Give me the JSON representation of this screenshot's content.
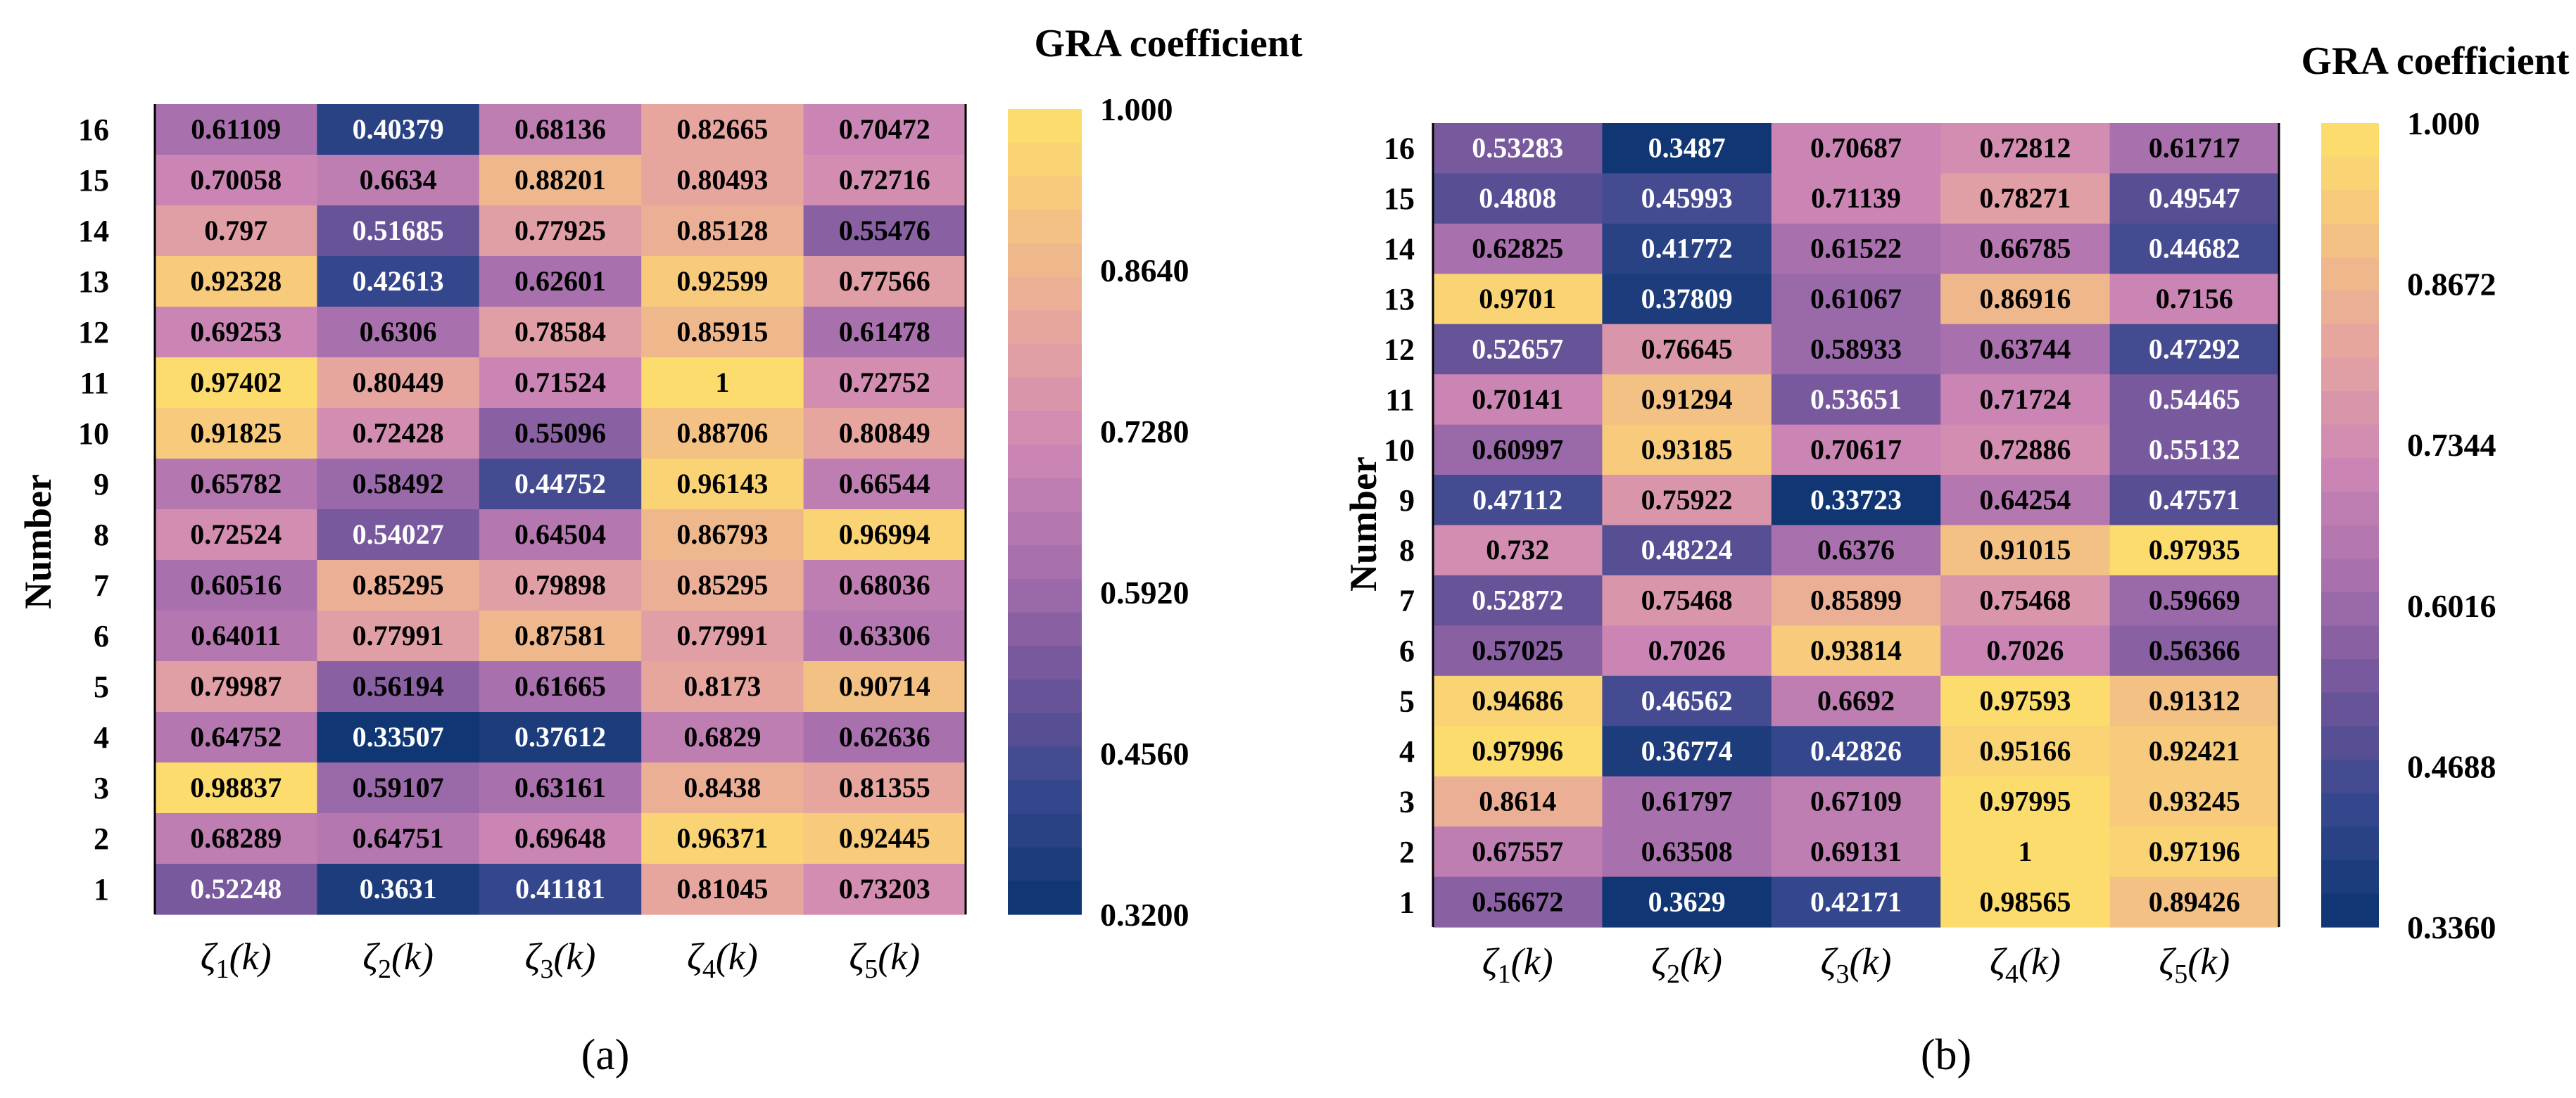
{
  "figure": {
    "panels": [
      "(a)",
      "(b)"
    ]
  },
  "chart_data": [
    {
      "type": "heatmap",
      "panel_label": "(a)",
      "colorbar_title": "GRA coefficient",
      "ylabel": "Number",
      "xlabel": "",
      "x_categories": [
        {
          "sym": "ζ",
          "sub": "1",
          "arg": "(k)"
        },
        {
          "sym": "ζ",
          "sub": "2",
          "arg": "(k)"
        },
        {
          "sym": "ζ",
          "sub": "3",
          "arg": "(k)"
        },
        {
          "sym": "ζ",
          "sub": "4",
          "arg": "(k)"
        },
        {
          "sym": "ζ",
          "sub": "5",
          "arg": "(k)"
        }
      ],
      "y_categories": [
        "16",
        "15",
        "14",
        "13",
        "12",
        "11",
        "10",
        "9",
        "8",
        "7",
        "6",
        "5",
        "4",
        "3",
        "2",
        "1"
      ],
      "cells": [
        [
          "0.61109",
          "0.40379",
          "0.68136",
          "0.82665",
          "0.70472"
        ],
        [
          "0.70058",
          "0.6634",
          "0.88201",
          "0.80493",
          "0.72716"
        ],
        [
          "0.797",
          "0.51685",
          "0.77925",
          "0.85128",
          "0.55476"
        ],
        [
          "0.92328",
          "0.42613",
          "0.62601",
          "0.92599",
          "0.77566"
        ],
        [
          "0.69253",
          "0.6306",
          "0.78584",
          "0.85915",
          "0.61478"
        ],
        [
          "0.97402",
          "0.80449",
          "0.71524",
          "1",
          "0.72752"
        ],
        [
          "0.91825",
          "0.72428",
          "0.55096",
          "0.88706",
          "0.80849"
        ],
        [
          "0.65782",
          "0.58492",
          "0.44752",
          "0.96143",
          "0.66544"
        ],
        [
          "0.72524",
          "0.54027",
          "0.64504",
          "0.86793",
          "0.96994"
        ],
        [
          "0.60516",
          "0.85295",
          "0.79898",
          "0.85295",
          "0.68036"
        ],
        [
          "0.64011",
          "0.77991",
          "0.87581",
          "0.77991",
          "0.63306"
        ],
        [
          "0.79987",
          "0.56194",
          "0.61665",
          "0.8173",
          "0.90714"
        ],
        [
          "0.64752",
          "0.33507",
          "0.37612",
          "0.6829",
          "0.62636"
        ],
        [
          "0.98837",
          "0.59107",
          "0.63161",
          "0.8438",
          "0.81355"
        ],
        [
          "0.68289",
          "0.64751",
          "0.69648",
          "0.96371",
          "0.92445"
        ],
        [
          "0.52248",
          "0.3631",
          "0.41181",
          "0.81045",
          "0.73203"
        ]
      ],
      "color_range": [
        0.32,
        1.0
      ],
      "colorbar_ticks": [
        "1.000",
        "0.8640",
        "0.7280",
        "0.5920",
        "0.4560",
        "0.3200"
      ],
      "colorbar_tick_values": [
        1.0,
        0.864,
        0.728,
        0.592,
        0.456,
        0.32
      ]
    },
    {
      "type": "heatmap",
      "panel_label": "(b)",
      "colorbar_title": "GRA coefficient",
      "ylabel": "Number",
      "xlabel": "",
      "x_categories": [
        {
          "sym": "ζ",
          "sub": "1",
          "arg": "(k)"
        },
        {
          "sym": "ζ",
          "sub": "2",
          "arg": "(k)"
        },
        {
          "sym": "ζ",
          "sub": "3",
          "arg": "(k)"
        },
        {
          "sym": "ζ",
          "sub": "4",
          "arg": "(k)"
        },
        {
          "sym": "ζ",
          "sub": "5",
          "arg": "(k)"
        }
      ],
      "y_categories": [
        "16",
        "15",
        "14",
        "13",
        "12",
        "11",
        "10",
        "9",
        "8",
        "7",
        "6",
        "5",
        "4",
        "3",
        "2",
        "1"
      ],
      "cells": [
        [
          "0.53283",
          "0.3487",
          "0.70687",
          "0.72812",
          "0.61717"
        ],
        [
          "0.4808",
          "0.45993",
          "0.71139",
          "0.78271",
          "0.49547"
        ],
        [
          "0.62825",
          "0.41772",
          "0.61522",
          "0.66785",
          "0.44682"
        ],
        [
          "0.9701",
          "0.37809",
          "0.61067",
          "0.86916",
          "0.7156"
        ],
        [
          "0.52657",
          "0.76645",
          "0.58933",
          "0.63744",
          "0.47292"
        ],
        [
          "0.70141",
          "0.91294",
          "0.53651",
          "0.71724",
          "0.54465"
        ],
        [
          "0.60997",
          "0.93185",
          "0.70617",
          "0.72886",
          "0.55132"
        ],
        [
          "0.47112",
          "0.75922",
          "0.33723",
          "0.64254",
          "0.47571"
        ],
        [
          "0.732",
          "0.48224",
          "0.6376",
          "0.91015",
          "0.97935"
        ],
        [
          "0.52872",
          "0.75468",
          "0.85899",
          "0.75468",
          "0.59669"
        ],
        [
          "0.57025",
          "0.7026",
          "0.93814",
          "0.7026",
          "0.56366"
        ],
        [
          "0.94686",
          "0.46562",
          "0.6692",
          "0.97593",
          "0.91312"
        ],
        [
          "0.97996",
          "0.36774",
          "0.42826",
          "0.95166",
          "0.92421"
        ],
        [
          "0.8614",
          "0.61797",
          "0.67109",
          "0.97995",
          "0.93245"
        ],
        [
          "0.67557",
          "0.63508",
          "0.69131",
          "1",
          "0.97196"
        ],
        [
          "0.56672",
          "0.3629",
          "0.42171",
          "0.98565",
          "0.89426"
        ]
      ],
      "color_range": [
        0.336,
        1.0
      ],
      "colorbar_ticks": [
        "1.000",
        "0.8672",
        "0.7344",
        "0.6016",
        "0.4688",
        "0.3360"
      ],
      "colorbar_tick_values": [
        1.0,
        0.8672,
        0.7344,
        0.6016,
        0.4688,
        0.336
      ]
    }
  ],
  "colormap": {
    "stops": [
      "#0a3470",
      "#33478c",
      "#6d5499",
      "#a76fae",
      "#cc86b4",
      "#e4a3a1",
      "#f4c283",
      "#ffe06a"
    ],
    "steps": 24
  }
}
